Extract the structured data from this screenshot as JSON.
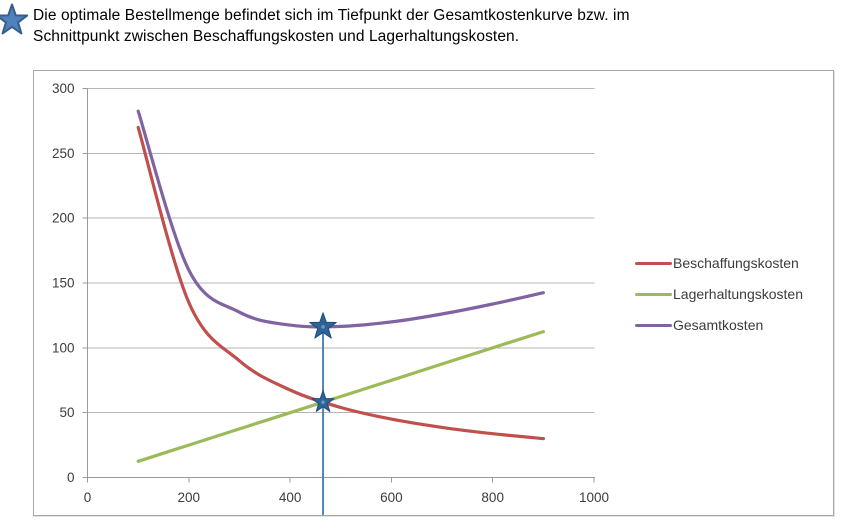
{
  "header": {
    "icon": "star",
    "line1": "Die optimale Bestellmenge befindet sich im Tiefpunkt der Gesamtkostenkurve bzw. im",
    "line2": "Schnittpunkt zwischen Beschaffungskosten und Lagerhaltungskosten."
  },
  "chart_data": {
    "type": "line",
    "x": [
      100,
      200,
      300,
      400,
      500,
      600,
      700,
      800,
      900
    ],
    "series": [
      {
        "name": "Beschaffungskosten",
        "color": "#c0504d",
        "values": [
          270,
          135,
          90,
          67.5,
          54,
          45,
          38.6,
          33.8,
          30
        ]
      },
      {
        "name": "Lagerhaltungskosten",
        "color": "#9bbb59",
        "values": [
          12.5,
          25,
          37.5,
          50,
          62.5,
          75,
          87.5,
          100,
          112.5
        ]
      },
      {
        "name": "Gesamtkosten",
        "color": "#8064a2",
        "values": [
          282.5,
          160,
          127.5,
          117.5,
          116.5,
          120,
          126.1,
          133.8,
          142.5
        ]
      }
    ],
    "xlim": [
      0,
      1000
    ],
    "ylim": [
      0,
      300
    ],
    "x_ticks": [
      0,
      200,
      400,
      600,
      800,
      1000
    ],
    "y_ticks": [
      0,
      50,
      100,
      150,
      200,
      250,
      300
    ],
    "grid": "horizontal",
    "legend_position": "right",
    "smooth": true,
    "annotations": {
      "optimum_x": 465,
      "optimum_total_cost": 116.2,
      "intersection_cost": 58.1,
      "marker_shape": "star",
      "marker_color": "#2e6399",
      "marker_stroke": "#1f4c77",
      "marker_highlight": "#6f94ba",
      "vline_color": "#4379ab"
    },
    "grid_color": "#b5b5b5",
    "axis_color": "#9a9a9a",
    "tick_label_color": "#3c3c3c"
  },
  "icon_colors": {
    "header_star_fill": "#4f81bd",
    "header_star_stroke": "#385d8a"
  }
}
